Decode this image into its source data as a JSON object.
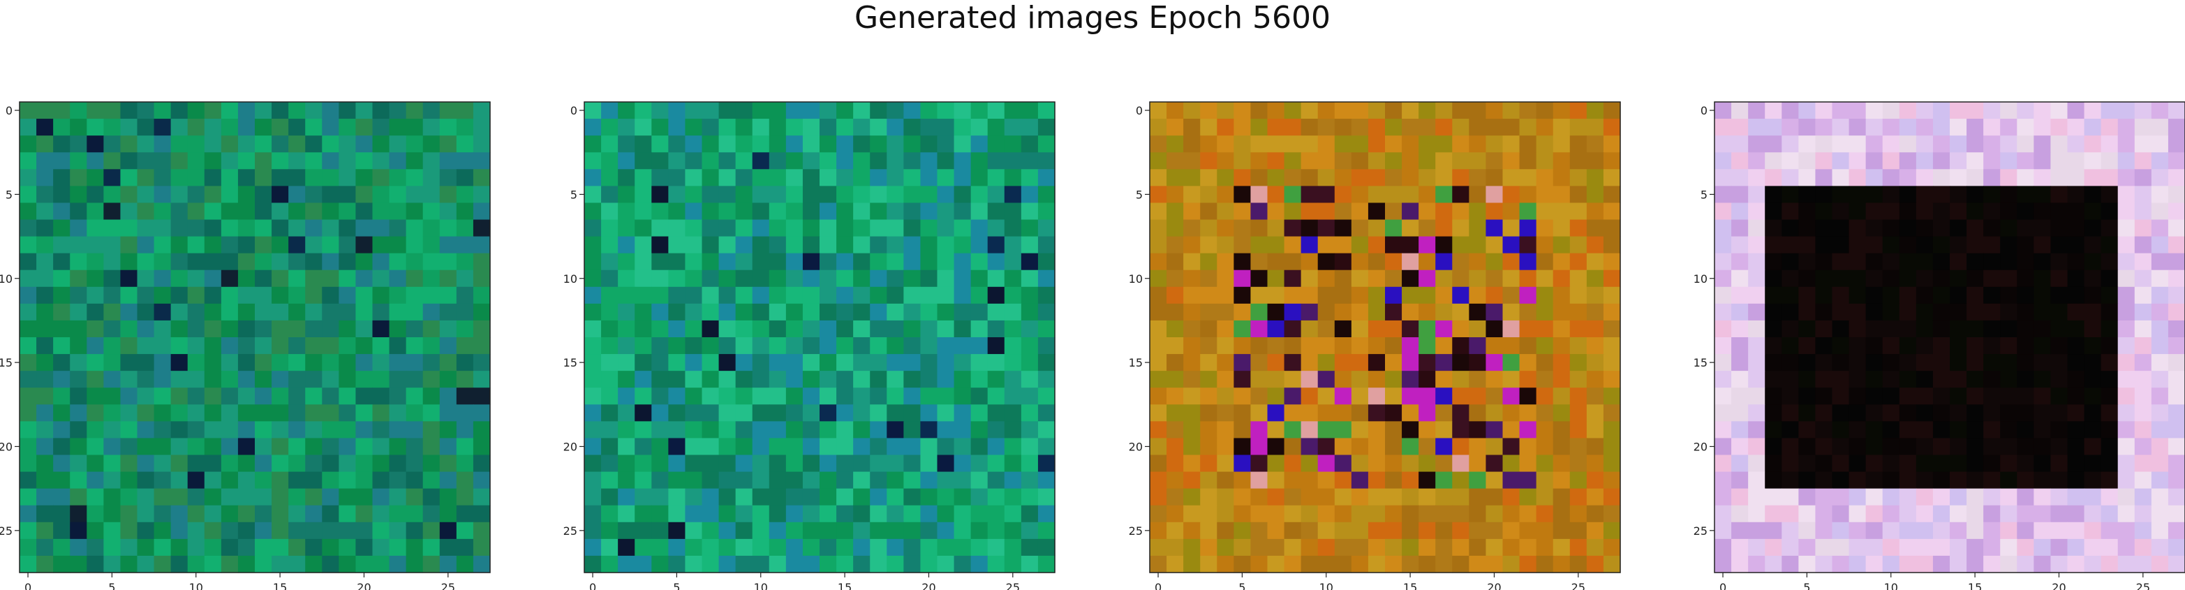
{
  "figure": {
    "title": "Generated images Epoch 5600"
  },
  "chart_data": [
    {
      "type": "heatmap",
      "rows": 28,
      "cols": 28,
      "xticks": [
        0,
        5,
        10,
        15,
        20,
        25
      ],
      "yticks": [
        0,
        5,
        10,
        15,
        20,
        25
      ],
      "xlim": [
        -0.5,
        27.5
      ],
      "ylim": [
        27.5,
        -0.5
      ],
      "grid": false,
      "palette": [
        "#0a8a4a",
        "#0fa060",
        "#12b070",
        "#1a9a7a",
        "#157a6a",
        "#2a8a50",
        "#0c6a5a",
        "#1e7e8a"
      ],
      "dark": [
        "#0a1a3a",
        "#0a2a4a",
        "#102030"
      ]
    },
    {
      "type": "heatmap",
      "rows": 28,
      "cols": 28,
      "xticks": [
        0,
        5,
        10,
        15,
        20,
        25
      ],
      "yticks": [
        0,
        5,
        10,
        15,
        20,
        25
      ],
      "xlim": [
        -0.5,
        27.5
      ],
      "ylim": [
        27.5,
        -0.5
      ],
      "grid": false,
      "palette": [
        "#0b9455",
        "#10a866",
        "#17b87a",
        "#1a9a80",
        "#138070",
        "#0d7a5a",
        "#23c08a",
        "#1a8aa0"
      ],
      "dark": [
        "#0a1a40",
        "#0a2a50",
        "#0c1630"
      ]
    },
    {
      "type": "heatmap",
      "rows": 28,
      "cols": 28,
      "xticks": [
        0,
        5,
        10,
        15,
        20,
        25
      ],
      "yticks": [
        0,
        5,
        10,
        15,
        20,
        25
      ],
      "xlim": [
        -0.5,
        27.5
      ],
      "ylim": [
        27.5,
        -0.5
      ],
      "grid": false,
      "palette": [
        "#c07a10",
        "#d08a18",
        "#b8901a",
        "#a87012",
        "#c89a20",
        "#d06a10",
        "#b07a18",
        "#9a8a10"
      ],
      "dark": [
        "#2a0a10",
        "#3a1020",
        "#1a0808",
        "#4a1a6a",
        "#2a10c0",
        "#c020c0",
        "#e0a0a0",
        "#40a040"
      ]
    },
    {
      "type": "heatmap",
      "rows": 28,
      "cols": 28,
      "xticks": [
        0,
        5,
        10,
        15,
        20,
        25
      ],
      "yticks": [
        0,
        5,
        10,
        15,
        20,
        25
      ],
      "xlim": [
        -0.5,
        27.5
      ],
      "ylim": [
        27.5,
        -0.5
      ],
      "grid": false,
      "palette": [
        "#e0c8f0",
        "#f0d0f0",
        "#d8b0e8",
        "#f0e0f0",
        "#c8a0e0",
        "#f0c0e0",
        "#e8d8e8",
        "#d0c0f0"
      ],
      "dark": [
        "#0a0505",
        "#100808",
        "#080a04",
        "#1a0a0a",
        "#050505"
      ]
    }
  ]
}
